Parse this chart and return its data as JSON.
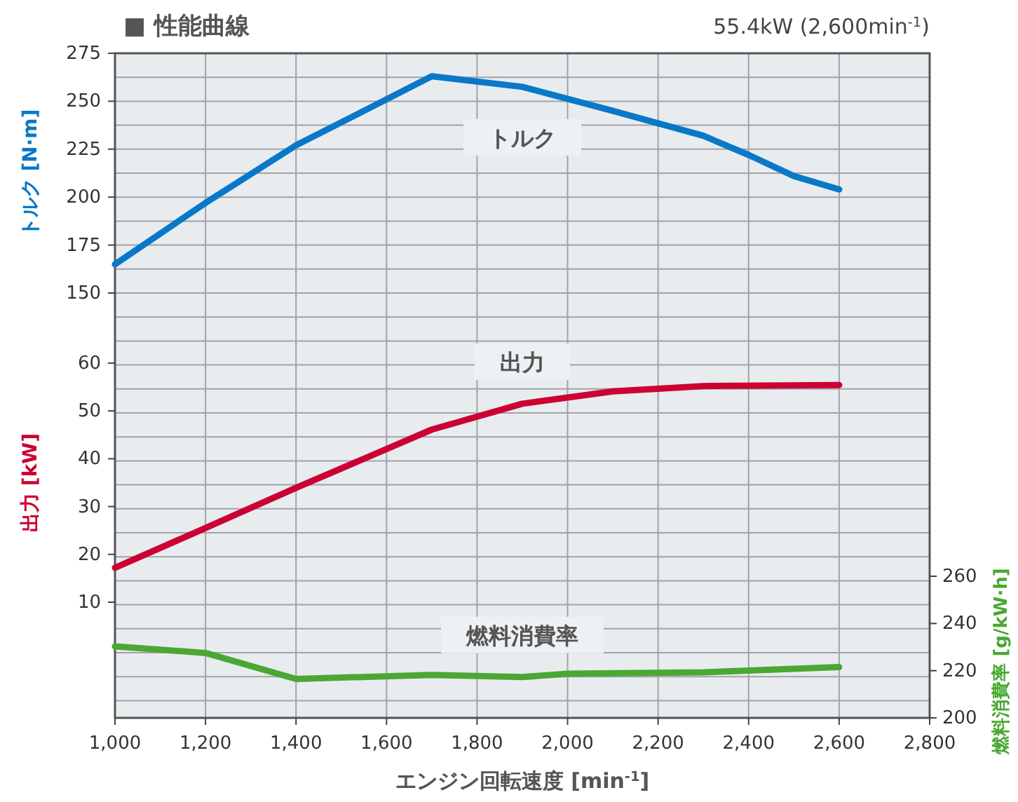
{
  "chart_data": {
    "type": "line",
    "title": "■ 性能曲線",
    "subtitle": "55.4kW (2,600min$^{-1}$)",
    "xlabel": "エンジン回転速度 [min$^{-1}$]",
    "ylabel": "トルク [N·m]",
    "y3label": "出力 [kW]",
    "y2label": "燃料消費率 [g/kW·h]",
    "xlim": [
      1000,
      2800
    ],
    "xticks": [
      {
        "value": 1000,
        "label": "1,000"
      },
      {
        "value": 1200,
        "label": "1,200"
      },
      {
        "value": 1400,
        "label": "1,400"
      },
      {
        "value": 1600,
        "label": "1,600"
      },
      {
        "value": 1800,
        "label": "1,800"
      },
      {
        "value": 2000,
        "label": "2,000"
      },
      {
        "value": 2200,
        "label": "2,200"
      },
      {
        "value": 2400,
        "label": "2,400"
      },
      {
        "value": 2600,
        "label": "2,600"
      },
      {
        "value": 2800,
        "label": "2,800"
      }
    ],
    "ylim": [
      -71.5,
      275
    ],
    "yticks": [
      150,
      175,
      200,
      225,
      250,
      275
    ],
    "y3lim": [
      -14.2,
      124.8
    ],
    "y3ticks": [
      10,
      20,
      30,
      40,
      50,
      60
    ],
    "y2lim": [
      200,
      481.6
    ],
    "y2ticks": [
      200,
      220,
      240,
      260
    ],
    "grid": true,
    "line_style": "solid",
    "marker": "none",
    "series": [
      {
        "name": "トルク",
        "color": "#0a78c8",
        "x": [
          1000,
          1200,
          1400,
          1700,
          1900,
          2100,
          2300,
          2400,
          2500,
          2600
        ],
        "values": [
          165,
          197,
          227,
          263,
          257.5,
          245,
          232,
          222,
          211,
          204
        ]
      },
      {
        "name": "出力",
        "color": "#cc0033",
        "axis": "y3",
        "x": [
          1000,
          1200,
          1400,
          1700,
          1900,
          2100,
          2300,
          2600
        ],
        "values": [
          17.2,
          25.5,
          33.9,
          46.1,
          51.5,
          54.1,
          55.2,
          55.4
        ]
      },
      {
        "name": "燃料消費率",
        "color": "#4aa832",
        "axis": "y2",
        "x": [
          1000,
          1200,
          1400,
          1700,
          1900,
          2000,
          2300,
          2600
        ],
        "values": [
          230.3,
          227.5,
          216.5,
          218.2,
          217.3,
          218.7,
          219.3,
          221.5
        ]
      }
    ]
  }
}
